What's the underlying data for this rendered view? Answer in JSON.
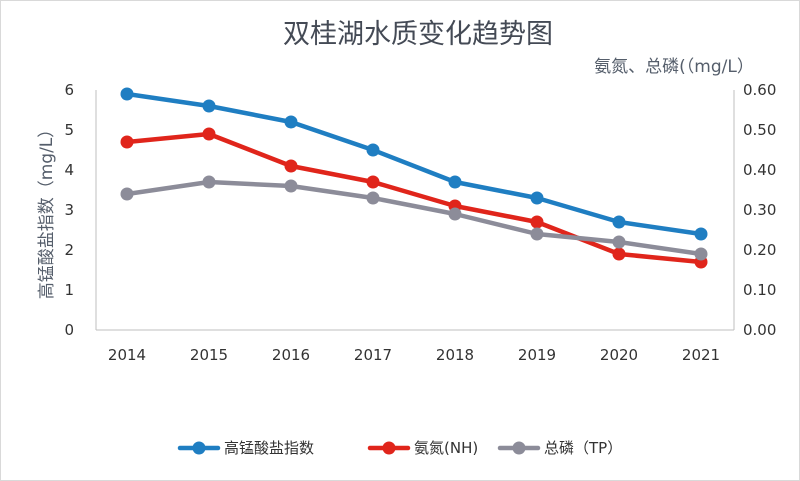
{
  "chart_data": {
    "type": "line",
    "title": "双桂湖水质变化趋势图",
    "ylabel_left": "高锰酸盐指数（mg/L）",
    "ylabel_right": "氨氮、总磷(（mg/L）",
    "categories": [
      "2014",
      "2015",
      "2016",
      "2017",
      "2018",
      "2019",
      "2020",
      "2021"
    ],
    "ylim_left": [
      0,
      6
    ],
    "yticks_left": [
      "0",
      "1",
      "2",
      "3",
      "4",
      "5",
      "6"
    ],
    "ylim_right": [
      0,
      0.6
    ],
    "yticks_right": [
      "0.00",
      "0.10",
      "0.20",
      "0.30",
      "0.40",
      "0.50",
      "0.60"
    ],
    "grid": false,
    "legend_position": "bottom",
    "series": [
      {
        "name": "高锰酸盐指数",
        "axis": "left",
        "color": "#1f7ec2",
        "values": [
          5.9,
          5.6,
          5.2,
          4.5,
          3.7,
          3.3,
          2.7,
          2.4
        ]
      },
      {
        "name": "氨氮(NH)",
        "axis": "right",
        "color": "#e0251b",
        "values": [
          0.47,
          0.49,
          0.41,
          0.37,
          0.31,
          0.27,
          0.19,
          0.17
        ]
      },
      {
        "name": "总磷（TP）",
        "axis": "right",
        "color": "#8c8c99",
        "values": [
          0.34,
          0.37,
          0.36,
          0.33,
          0.29,
          0.24,
          0.22,
          0.19
        ]
      }
    ]
  }
}
